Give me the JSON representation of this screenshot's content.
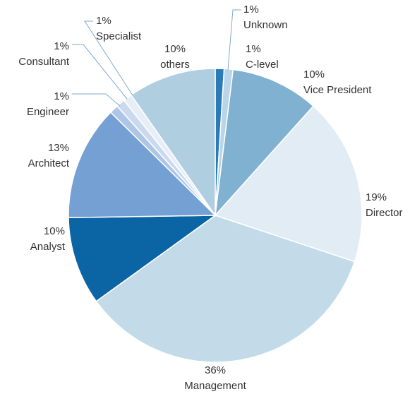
{
  "chart_data": {
    "type": "pie",
    "categories": [
      "Unknown",
      "C-level",
      "Vice President",
      "Director",
      "Management",
      "Analyst",
      "Architect",
      "Engineer",
      "Consultant",
      "Specialist",
      "others"
    ],
    "values": [
      1,
      1,
      10,
      19,
      36,
      10,
      13,
      1,
      1,
      1,
      10
    ],
    "value_labels": [
      "1%",
      "1%",
      "10%",
      "19%",
      "36%",
      "10%",
      "13%",
      "1%",
      "1%",
      "1%",
      "10%"
    ],
    "colors": [
      "#2b7bb6",
      "#b9d5e7",
      "#80b1d0",
      "#e2ecf4",
      "#c3dbe8",
      "#0b65a5",
      "#74a0d4",
      "#aec6e6",
      "#cad9ee",
      "#e7eef7",
      "#afcfe1"
    ]
  }
}
